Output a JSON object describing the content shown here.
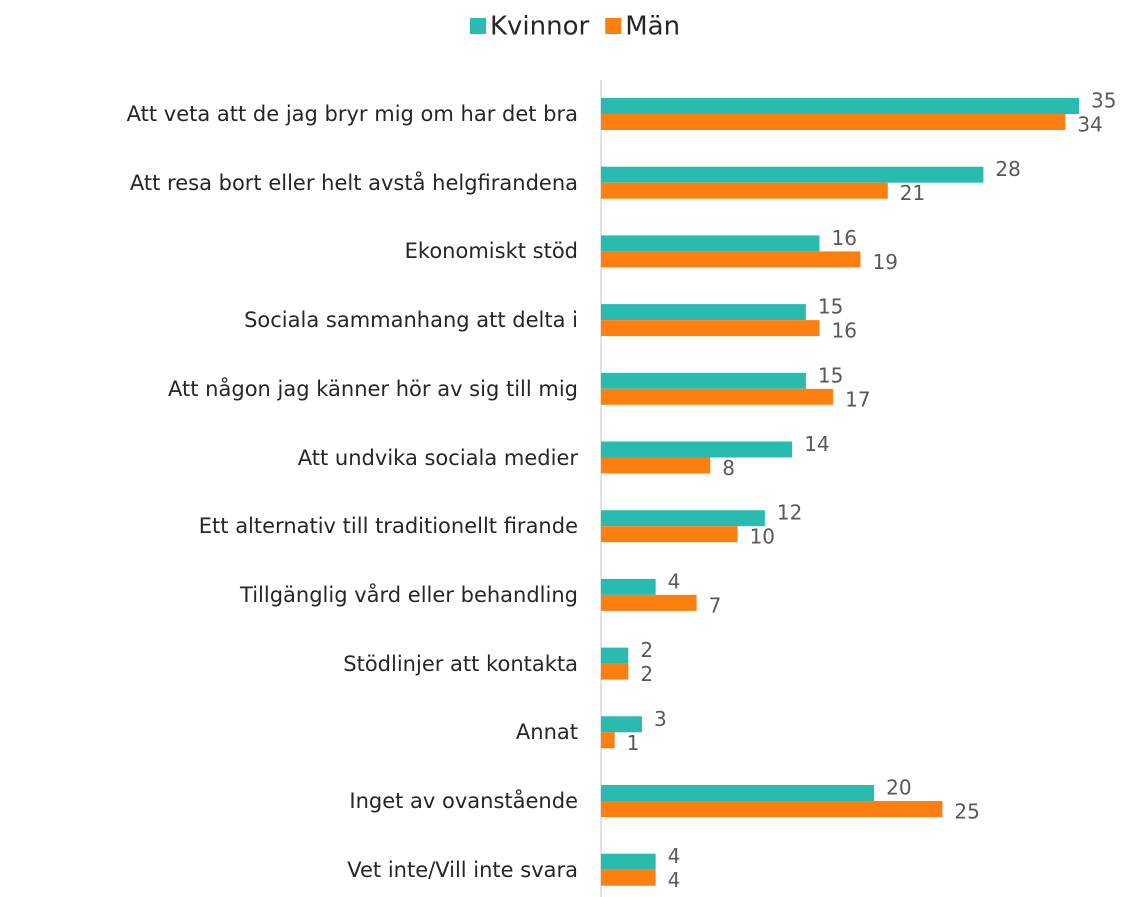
{
  "chart_data": {
    "type": "bar",
    "orientation": "horizontal",
    "categories": [
      "Att veta att de jag bryr mig om har det bra",
      "Att resa bort eller helt avstå helgfirandena",
      "Ekonomiskt stöd",
      "Sociala sammanhang att delta i",
      "Att någon jag känner hör av sig till mig",
      "Att undvika sociala medier",
      "Ett alternativ till traditionellt firande",
      "Tillgänglig vård eller behandling",
      "Stödlinjer att kontakta",
      "Annat",
      "Inget av ovanstående",
      "Vet inte/Vill inte svara"
    ],
    "series": [
      {
        "name": "Kvinnor",
        "color": "#2abbb0",
        "values": [
          35,
          28,
          16,
          15,
          15,
          14,
          12,
          4,
          2,
          3,
          20,
          4
        ]
      },
      {
        "name": "Män",
        "color": "#fd7f0f",
        "values": [
          34,
          21,
          19,
          16,
          17,
          8,
          10,
          7,
          2,
          1,
          25,
          4
        ]
      }
    ],
    "legend": "top"
  }
}
